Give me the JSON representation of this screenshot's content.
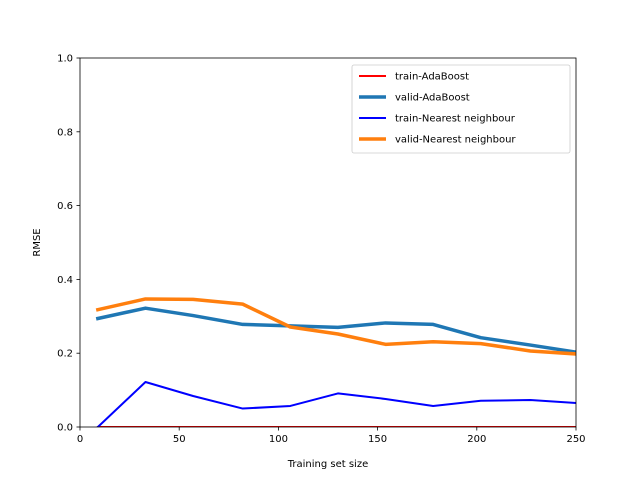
{
  "chart_data": {
    "type": "line",
    "title": "",
    "xlabel": "Training set size",
    "ylabel": "RMSE",
    "xlim": [
      0,
      250
    ],
    "ylim": [
      0,
      1.0
    ],
    "xticks": [
      0,
      50,
      100,
      150,
      200,
      250
    ],
    "xtick_labels": [
      "0",
      "50",
      "100",
      "150",
      "200",
      "250"
    ],
    "yticks": [
      0,
      0.2,
      0.4,
      0.6,
      0.8,
      1.0
    ],
    "ytick_labels": [
      "0.0",
      "0.2",
      "0.4",
      "0.6",
      "0.8",
      "1.0"
    ],
    "grid": false,
    "legend_position": "top-right",
    "x": [
      9,
      33,
      57,
      82,
      106,
      130,
      154,
      178,
      202,
      227,
      250
    ],
    "series": [
      {
        "name": "train-AdaBoost",
        "color": "#ff0000",
        "line_style": "thin",
        "values": [
          0,
          0,
          0,
          0,
          0,
          0,
          0,
          0,
          0,
          0,
          0
        ]
      },
      {
        "name": "valid-AdaBoost",
        "color": "#1f77b4",
        "line_style": "thick",
        "values": [
          0.294,
          0.322,
          0.302,
          0.278,
          0.274,
          0.27,
          0.282,
          0.278,
          0.242,
          0.222,
          0.203
        ]
      },
      {
        "name": "train-Nearest neighbour",
        "color": "#0000ff",
        "line_style": "thin",
        "values": [
          0,
          0.122,
          0.084,
          0.05,
          0.057,
          0.091,
          0.076,
          0.057,
          0.071,
          0.073,
          0.065
        ]
      },
      {
        "name": "valid-Nearest neighbour",
        "color": "#ff7f0e",
        "line_style": "thick",
        "values": [
          0.318,
          0.347,
          0.346,
          0.333,
          0.271,
          0.252,
          0.224,
          0.231,
          0.226,
          0.206,
          0.198
        ]
      }
    ]
  }
}
